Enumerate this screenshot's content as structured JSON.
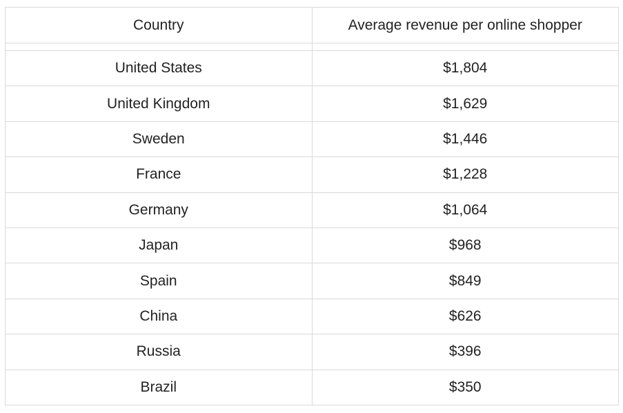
{
  "chart_data": {
    "type": "table",
    "columns": [
      "Country",
      "Average revenue per online shopper"
    ],
    "rows": [
      {
        "country": "United States",
        "revenue": "$1,804"
      },
      {
        "country": "United Kingdom",
        "revenue": "$1,629"
      },
      {
        "country": "Sweden",
        "revenue": "$1,446"
      },
      {
        "country": "France",
        "revenue": "$1,228"
      },
      {
        "country": "Germany",
        "revenue": "$1,064"
      },
      {
        "country": "Japan",
        "revenue": "$968"
      },
      {
        "country": "Spain",
        "revenue": "$849"
      },
      {
        "country": "China",
        "revenue": "$626"
      },
      {
        "country": "Russia",
        "revenue": "$396"
      },
      {
        "country": "Brazil",
        "revenue": "$350"
      }
    ],
    "values": [
      1804,
      1629,
      1446,
      1228,
      1064,
      968,
      849,
      626,
      396,
      350
    ],
    "categories": [
      "United States",
      "United Kingdom",
      "Sweden",
      "France",
      "Germany",
      "Japan",
      "Spain",
      "China",
      "Russia",
      "Brazil"
    ]
  },
  "colors": {
    "border": "#d9d9d9",
    "text": "#222222",
    "background": "#ffffff"
  }
}
